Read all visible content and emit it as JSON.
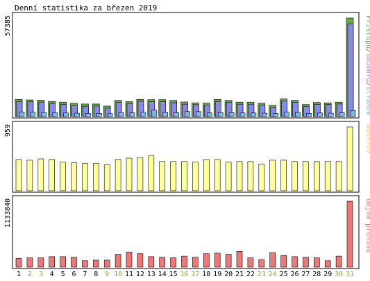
{
  "chart_data": {
    "type": "bar",
    "title": "Denní statistika za březen 2019",
    "categories": [
      "1",
      "2",
      "3",
      "4",
      "5",
      "6",
      "7",
      "8",
      "9",
      "10",
      "11",
      "12",
      "13",
      "14",
      "15",
      "16",
      "17",
      "18",
      "19",
      "20",
      "21",
      "22",
      "23",
      "24",
      "25",
      "26",
      "27",
      "28",
      "29",
      "30",
      "31"
    ],
    "weekend_days": [
      "2",
      "3",
      "9",
      "10",
      "16",
      "17",
      "23",
      "24",
      "30",
      "31"
    ],
    "colors": {
      "pristupu": "#66aa44",
      "souboru": "#8888ee",
      "stranek": "#77bbdd",
      "navstev": "#ffff99",
      "prenos": "#ee7777",
      "weekday_tick": "#000000",
      "weekend_tick": "#88bb22",
      "frame": "#000000"
    },
    "panels": [
      {
        "id": "hits",
        "scale_label": "57385",
        "max": 57385,
        "legend": [
          {
            "text": "Přístupů",
            "color": "#66aa44"
          },
          {
            "text": "/",
            "color": "#555555"
          },
          {
            "text": "Souborů",
            "color": "#8888ee"
          },
          {
            "text": "/",
            "color": "#555555"
          },
          {
            "text": "Stránek",
            "color": "#77bbdd"
          }
        ],
        "series": [
          {
            "name": "Přístupů",
            "key": "pristupu",
            "values": [
              10000,
              9700,
              9500,
              8800,
              8400,
              7700,
              7300,
              7300,
              6100,
              9400,
              8700,
              10000,
              9800,
              9800,
              9400,
              8500,
              8000,
              7800,
              10000,
              9400,
              8400,
              8400,
              7800,
              6600,
              10300,
              9400,
              7000,
              8200,
              8000,
              8400,
              57385
            ]
          },
          {
            "name": "Souborů",
            "key": "souboru",
            "values": [
              8800,
              8600,
              8400,
              7400,
              7100,
              6400,
              6000,
              6100,
              4900,
              8200,
              7600,
              8900,
              8600,
              8600,
              8100,
              7200,
              6900,
              6600,
              8700,
              8300,
              7200,
              7200,
              6700,
              5500,
              9200,
              8300,
              6000,
              7100,
              7000,
              7300,
              54000
            ]
          },
          {
            "name": "Stránek",
            "key": "stranek",
            "values": [
              2600,
              2500,
              2400,
              2200,
              2100,
              2000,
              1900,
              1900,
              1700,
              2400,
              2200,
              2500,
              3800,
              2400,
              2300,
              3000,
              2900,
              2100,
              2400,
              2300,
              2100,
              2100,
              2000,
              1800,
              2600,
              2400,
              1900,
              2100,
              2000,
              2200,
              3500
            ]
          }
        ]
      },
      {
        "id": "visits",
        "scale_label": "959",
        "max": 959,
        "legend": [
          {
            "text": "Návštěv",
            "color": "#dddd55"
          }
        ],
        "series": [
          {
            "name": "Návštěv",
            "key": "navstev",
            "values": [
              470,
              460,
              480,
              470,
              430,
              420,
              410,
              410,
              390,
              470,
              490,
              500,
              530,
              440,
              440,
              440,
              430,
              470,
              470,
              430,
              440,
              440,
              400,
              460,
              460,
              440,
              440,
              440,
              440,
              440,
              959
            ]
          }
        ]
      },
      {
        "id": "transfer",
        "scale_label": "1133840",
        "max": 1133840,
        "legend": [
          {
            "text": "Objem přenosu",
            "color": "#ee7777"
          }
        ],
        "series": [
          {
            "name": "Objem přenosu",
            "key": "prenos",
            "values": [
              150000,
              160000,
              160000,
              180000,
              180000,
              170000,
              110000,
              120000,
              120000,
              220000,
              260000,
              230000,
              180000,
              170000,
              160000,
              190000,
              170000,
              230000,
              240000,
              220000,
              270000,
              160000,
              130000,
              250000,
              200000,
              180000,
              170000,
              160000,
              110000,
              190000,
              1133840
            ]
          }
        ]
      }
    ]
  }
}
